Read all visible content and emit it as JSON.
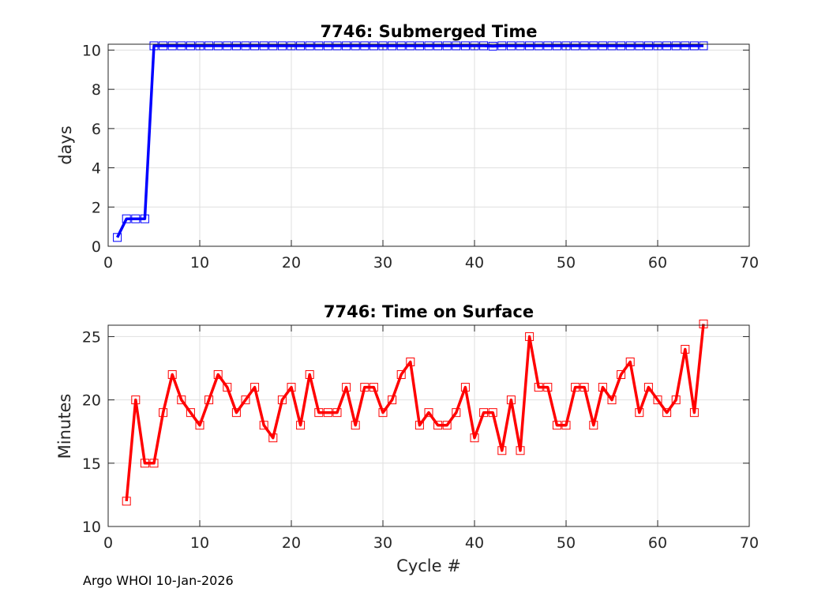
{
  "footer": "Argo WHOI 10-Jan-2026",
  "chart_data": [
    {
      "type": "line",
      "title": "7746: Submerged Time",
      "xlabel": "",
      "ylabel": "days",
      "xlim": [
        0,
        70
      ],
      "ylim": [
        0,
        10.3
      ],
      "xticks": [
        0,
        10,
        20,
        30,
        40,
        50,
        60,
        70
      ],
      "yticks": [
        0,
        2,
        4,
        6,
        8,
        10
      ],
      "grid": true,
      "color": "#0000ff",
      "marker": "square",
      "series": [
        {
          "name": "Submerged Time",
          "x": [
            1,
            2,
            3,
            4,
            5,
            6,
            7,
            8,
            9,
            10,
            11,
            12,
            13,
            14,
            15,
            16,
            17,
            18,
            19,
            20,
            21,
            22,
            23,
            24,
            25,
            26,
            27,
            28,
            29,
            30,
            31,
            32,
            33,
            34,
            35,
            36,
            37,
            38,
            39,
            40,
            41,
            42,
            43,
            44,
            45,
            46,
            47,
            48,
            49,
            50,
            51,
            52,
            53,
            54,
            55,
            56,
            57,
            58,
            59,
            60,
            61,
            62,
            63,
            64,
            65
          ],
          "values": [
            0.45,
            1.4,
            1.4,
            1.4,
            10.22,
            10.22,
            10.22,
            10.22,
            10.22,
            10.22,
            10.22,
            10.22,
            10.22,
            10.22,
            10.22,
            10.22,
            10.22,
            10.22,
            10.22,
            10.22,
            10.22,
            10.22,
            10.22,
            10.22,
            10.22,
            10.22,
            10.22,
            10.22,
            10.22,
            10.22,
            10.22,
            10.22,
            10.22,
            10.22,
            10.22,
            10.22,
            10.22,
            10.22,
            10.22,
            10.22,
            10.22,
            10.2,
            10.22,
            10.22,
            10.22,
            10.22,
            10.22,
            10.22,
            10.22,
            10.22,
            10.22,
            10.22,
            10.22,
            10.22,
            10.22,
            10.22,
            10.22,
            10.22,
            10.22,
            10.22,
            10.22,
            10.22,
            10.22,
            10.22,
            10.22
          ]
        }
      ]
    },
    {
      "type": "line",
      "title": "7746: Time on Surface",
      "xlabel": "Cycle #",
      "ylabel": "Minutes",
      "xlim": [
        0,
        70
      ],
      "ylim": [
        10,
        25.9
      ],
      "xticks": [
        0,
        10,
        20,
        30,
        40,
        50,
        60,
        70
      ],
      "yticks": [
        10,
        15,
        20,
        25
      ],
      "grid": true,
      "color": "#ff0000",
      "marker": "square",
      "series": [
        {
          "name": "Time on Surface",
          "x": [
            2,
            3,
            4,
            5,
            6,
            7,
            8,
            9,
            10,
            11,
            12,
            13,
            14,
            15,
            16,
            17,
            18,
            19,
            20,
            21,
            22,
            23,
            24,
            25,
            26,
            27,
            28,
            29,
            30,
            31,
            32,
            33,
            34,
            35,
            36,
            37,
            38,
            39,
            40,
            41,
            42,
            43,
            44,
            45,
            46,
            47,
            48,
            49,
            50,
            51,
            52,
            53,
            54,
            55,
            56,
            57,
            58,
            59,
            60,
            61,
            62,
            63,
            64,
            65
          ],
          "values": [
            12,
            20,
            15,
            15,
            19,
            22,
            20,
            19,
            18,
            20,
            22,
            21,
            19,
            20,
            21,
            18,
            17,
            20,
            21,
            18,
            22,
            19,
            19,
            19,
            21,
            18,
            21,
            21,
            19,
            20,
            22,
            23,
            18,
            19,
            18,
            18,
            19,
            21,
            17,
            19,
            19,
            16,
            20,
            16,
            25,
            21,
            21,
            18,
            18,
            21,
            21,
            18,
            21,
            20,
            22,
            23,
            19,
            21,
            20,
            19,
            20,
            24,
            19,
            26
          ]
        }
      ]
    }
  ]
}
